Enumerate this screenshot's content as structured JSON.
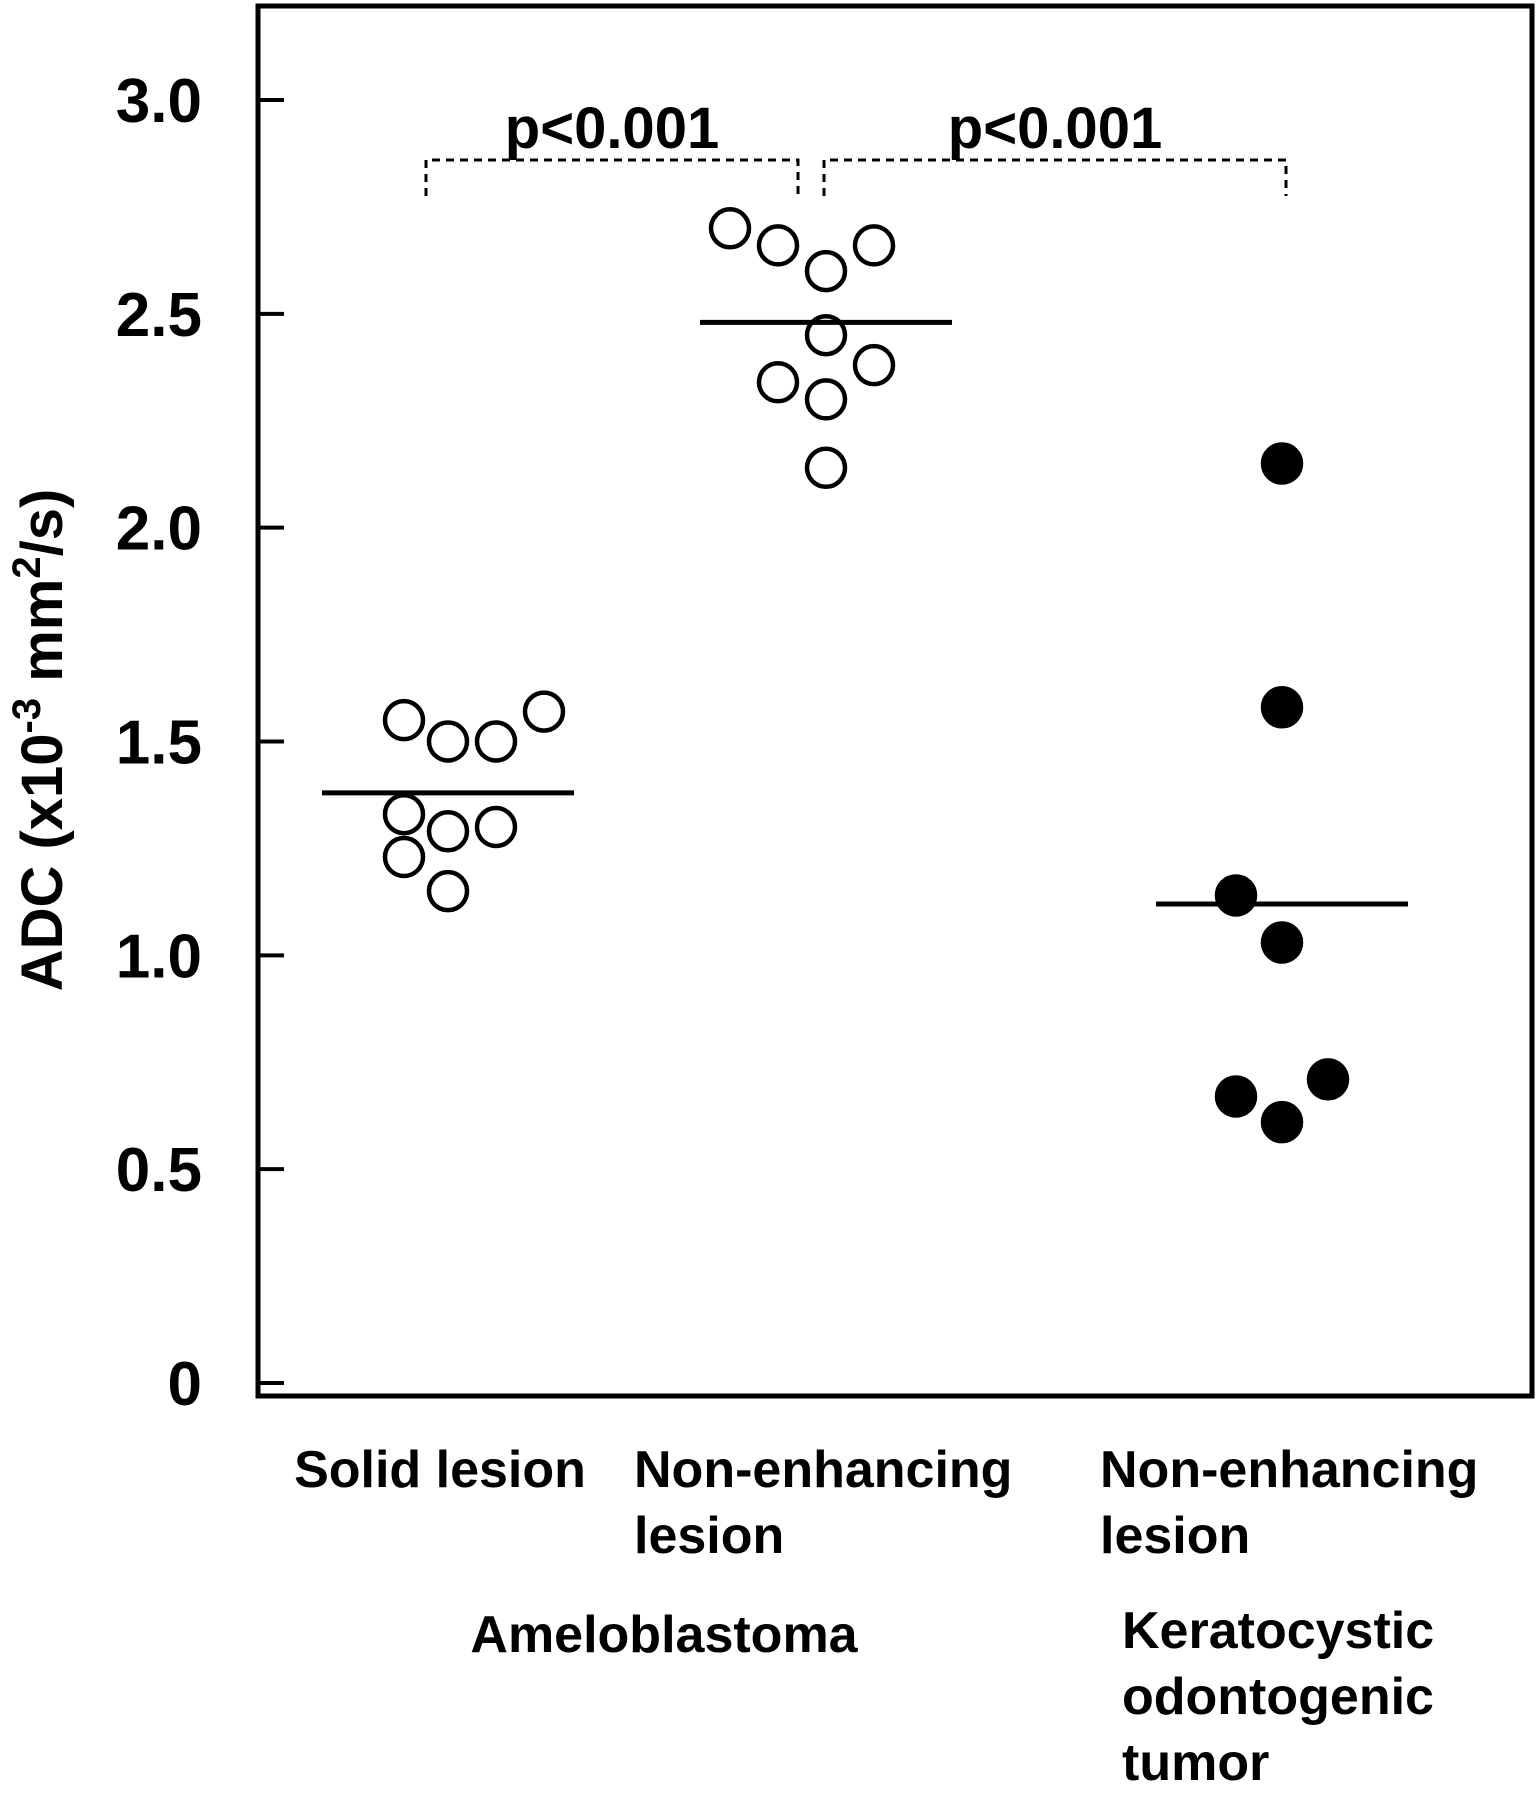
{
  "chart_data": {
    "type": "scatter",
    "title": "",
    "ylabel": {
      "prefix": "ADC (x10",
      "sup1": "-3",
      "mid": " mm",
      "sup2": "2",
      "suffix": "/s)"
    },
    "ylim": [
      0,
      3.2
    ],
    "yticks": [
      {
        "value": 0,
        "label": "0"
      },
      {
        "value": 0.5,
        "label": "0.5"
      },
      {
        "value": 1.0,
        "label": "1.0"
      },
      {
        "value": 1.5,
        "label": "1.5"
      },
      {
        "value": 2.0,
        "label": "2.0"
      },
      {
        "value": 2.5,
        "label": "2.5"
      },
      {
        "value": 3.0,
        "label": "3.0"
      }
    ],
    "grid": false,
    "legend": "none",
    "categories": [
      {
        "label_lines": [
          "Solid lesion"
        ]
      },
      {
        "label_lines": [
          "Non-enhancing",
          "lesion"
        ]
      },
      {
        "label_lines": [
          "Non-enhancing",
          "lesion"
        ]
      }
    ],
    "groups": [
      {
        "label": "Ameloblastoma",
        "categories": [
          0,
          1
        ]
      },
      {
        "label_lines": [
          "Keratocystic",
          "odontogenic",
          "tumor"
        ],
        "categories": [
          2
        ]
      }
    ],
    "series": [
      {
        "category": 0,
        "marker": "open-circle",
        "mean": 1.38,
        "values": [
          1.55,
          1.57,
          1.5,
          1.5,
          1.33,
          1.29,
          1.3,
          1.23,
          1.15
        ]
      },
      {
        "category": 1,
        "marker": "open-circle",
        "mean": 2.48,
        "values": [
          2.7,
          2.66,
          2.66,
          2.6,
          2.45,
          2.34,
          2.38,
          2.3,
          2.14
        ]
      },
      {
        "category": 2,
        "marker": "filled-circle",
        "mean": 1.12,
        "values": [
          2.15,
          1.58,
          1.14,
          1.03,
          0.71,
          0.67,
          0.61
        ]
      }
    ],
    "annotations": [
      {
        "text": "p<0.001",
        "from": 0,
        "to": 1
      },
      {
        "text": "p<0.001",
        "from": 1,
        "to": 2
      }
    ],
    "colors": {
      "open_fill": "#ffffff",
      "filled": "#000000",
      "ink": "#000000"
    }
  }
}
